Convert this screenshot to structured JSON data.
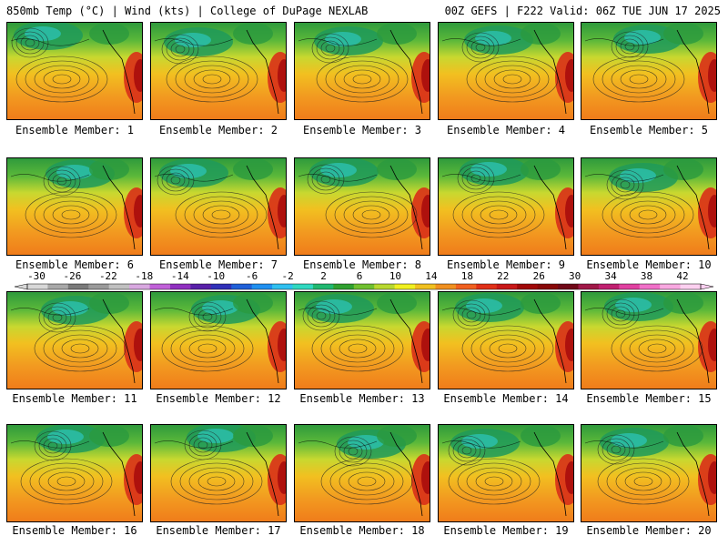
{
  "header": {
    "left": "850mb Temp (°C) | Wind (kts) | College of DuPage NEXLAB",
    "right": "00Z GEFS | F222 Valid: 06Z TUE JUN 17 2025"
  },
  "members": [
    "Ensemble Member: 1",
    "Ensemble Member: 2",
    "Ensemble Member: 3",
    "Ensemble Member: 4",
    "Ensemble Member: 5",
    "Ensemble Member: 6",
    "Ensemble Member: 7",
    "Ensemble Member: 8",
    "Ensemble Member: 9",
    "Ensemble Member: 10",
    "Ensemble Member: 11",
    "Ensemble Member: 12",
    "Ensemble Member: 13",
    "Ensemble Member: 14",
    "Ensemble Member: 15",
    "Ensemble Member: 16",
    "Ensemble Member: 17",
    "Ensemble Member: 18",
    "Ensemble Member: 19",
    "Ensemble Member: 20"
  ],
  "colorbar": {
    "labels": [
      "-30",
      "-26",
      "-22",
      "-18",
      "-14",
      "-10",
      "-6",
      "-2",
      "2",
      "6",
      "10",
      "14",
      "18",
      "22",
      "26",
      "30",
      "34",
      "38",
      "42"
    ],
    "colors": [
      "#d8d8d8",
      "#a8a8a8",
      "#7a7a7a",
      "#9a9a9a",
      "#c0c0c0",
      "#d8a8e0",
      "#c060d8",
      "#9030c0",
      "#5820a8",
      "#3030b8",
      "#2060d8",
      "#2090f0",
      "#30c0f0",
      "#30d8c0",
      "#20b870",
      "#30a030",
      "#70c030",
      "#b8d830",
      "#f0f020",
      "#f0c020",
      "#f09020",
      "#f06020",
      "#e03018",
      "#c81818",
      "#a00808",
      "#880808",
      "#700818",
      "#a01848",
      "#c02070",
      "#e040a0",
      "#f070c8",
      "#f8a8e0",
      "#fcd0f0"
    ]
  }
}
